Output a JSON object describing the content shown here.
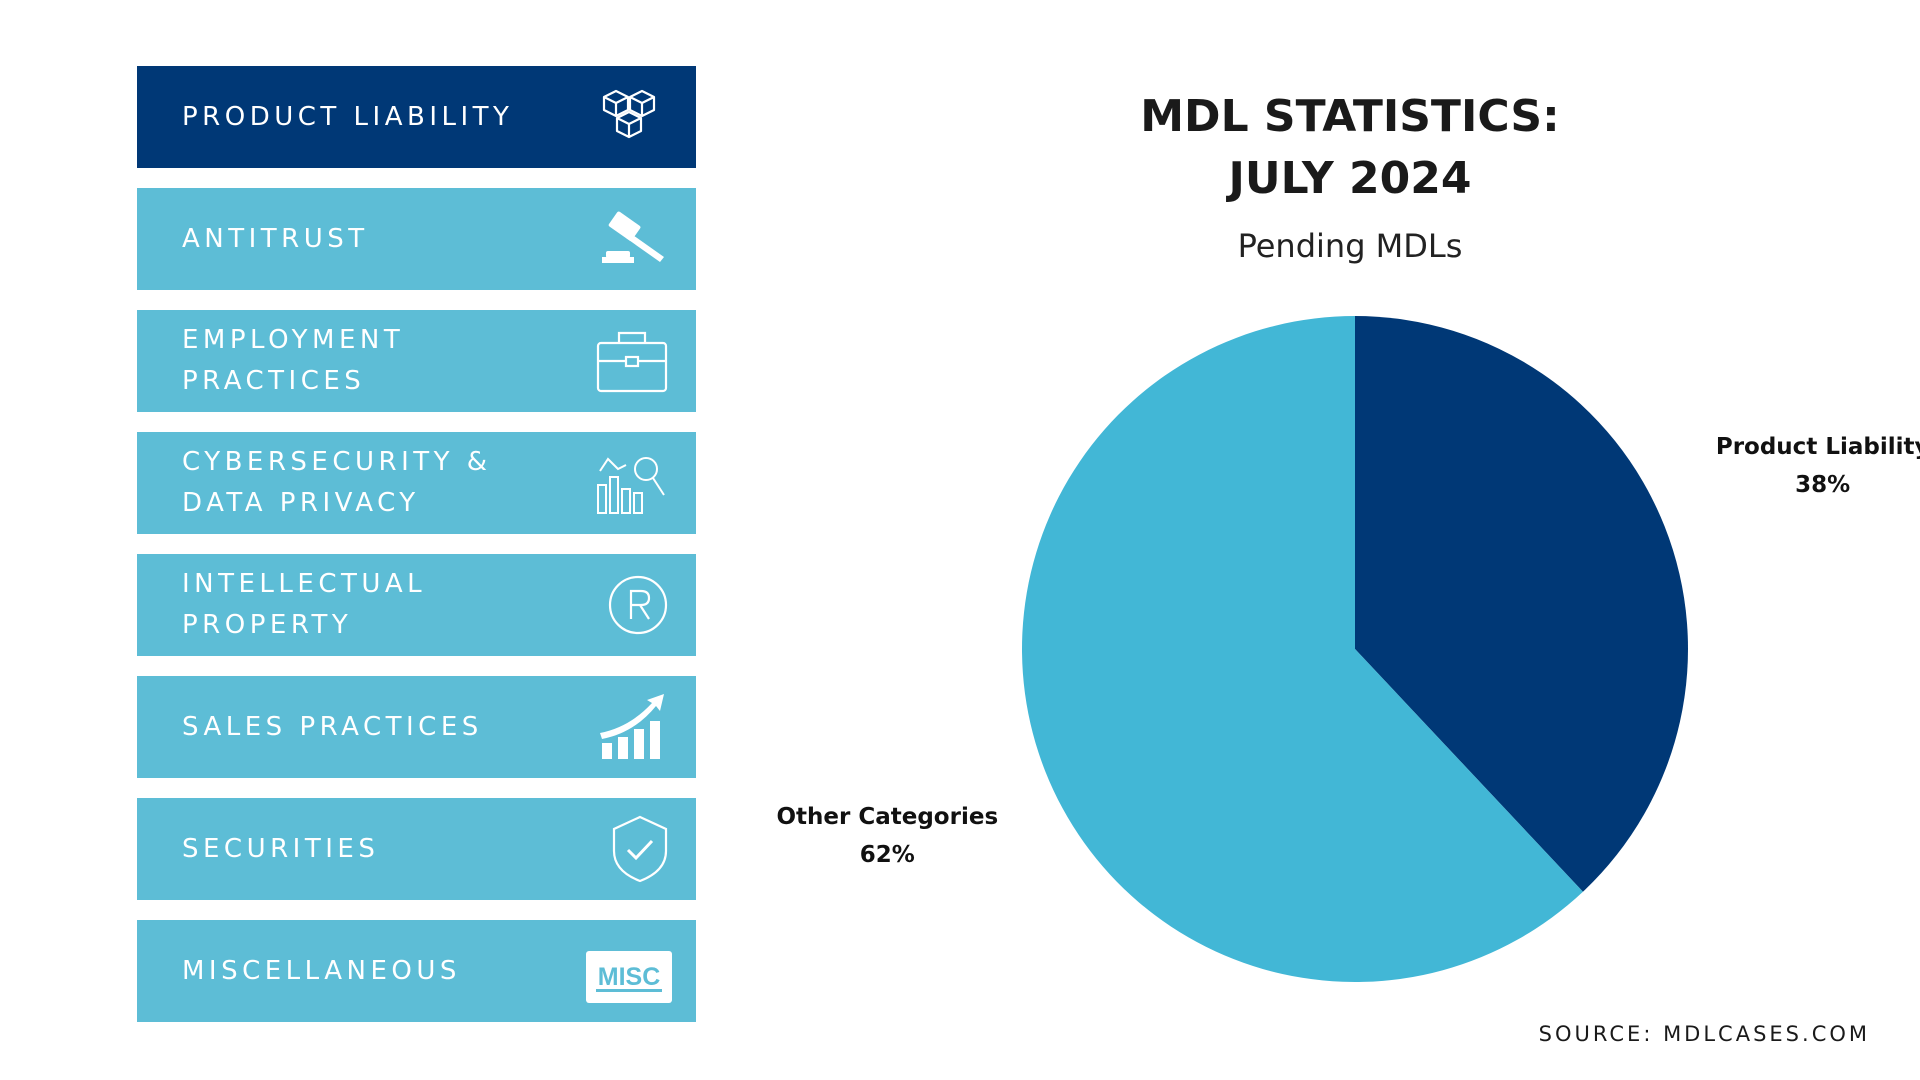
{
  "sidebar": {
    "items": [
      {
        "label": "PRODUCT LIABILITY",
        "icon": "boxes-icon",
        "active": true
      },
      {
        "label": "ANTITRUST",
        "icon": "gavel-icon",
        "active": false
      },
      {
        "label": "EMPLOYMENT PRACTICES",
        "icon": "briefcase-icon",
        "active": false
      },
      {
        "label": "CYBERSECURITY & DATA PRIVACY",
        "icon": "data-analysis-icon",
        "active": false
      },
      {
        "label": "INTELLECTUAL PROPERTY",
        "icon": "registered-trademark-icon",
        "active": false
      },
      {
        "label": "SALES PRACTICES",
        "icon": "growth-chart-icon",
        "active": false
      },
      {
        "label": "SECURITIES",
        "icon": "shield-check-icon",
        "active": false
      },
      {
        "label": "MISCELLANEOUS",
        "icon": "misc-tag-icon",
        "active": false
      }
    ]
  },
  "colors": {
    "active_item": "#003876",
    "inactive_item": "#5dbdd6",
    "product_liability_slice": "#003876",
    "other_categories_slice": "#42b7d6"
  },
  "misc_icon_text": "MISC",
  "chart_data": {
    "type": "pie",
    "title": "MDL STATISTICS: JULY 2024",
    "title_lines": [
      "MDL STATISTICS:",
      "JULY 2024"
    ],
    "subtitle": "Pending MDLs",
    "slices": [
      {
        "label": "Product Liability",
        "value": 38,
        "display": "38%",
        "color": "#003876"
      },
      {
        "label": "Other Categories",
        "value": 62,
        "display": "62%",
        "color": "#42b7d6"
      }
    ]
  },
  "source": "SOURCE: MDLCASES.COM"
}
